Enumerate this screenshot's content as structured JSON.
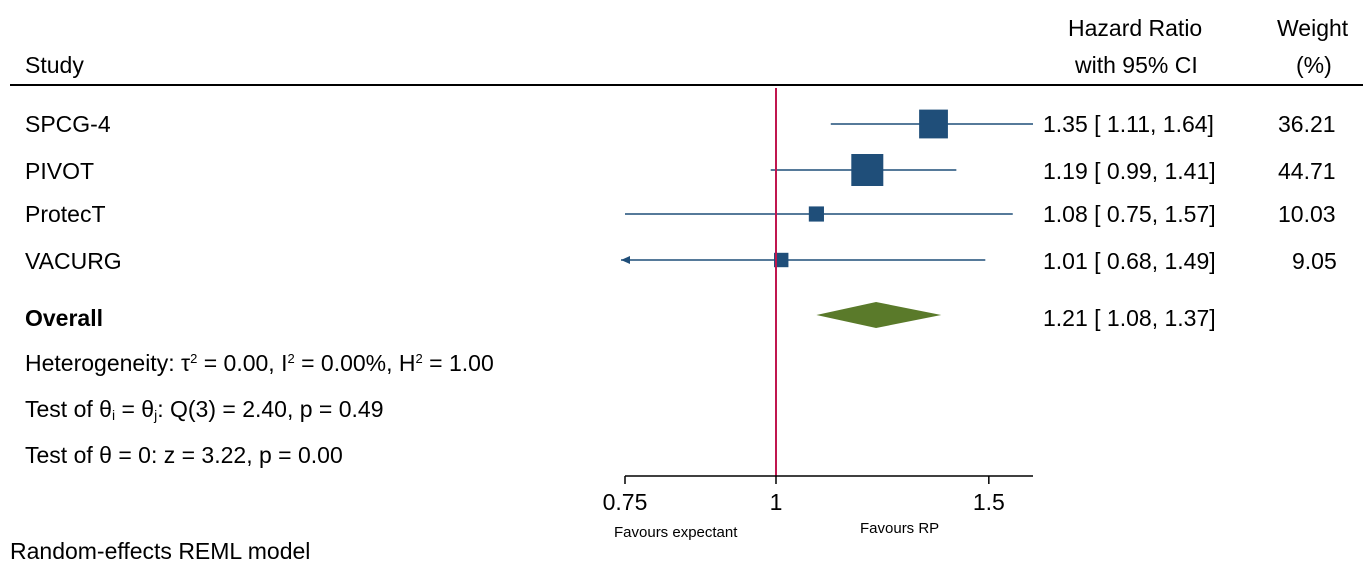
{
  "header": {
    "study_label": "Study",
    "effect_label_line1": "Hazard Ratio",
    "effect_label_line2": "with 95% CI",
    "weight_label_line1": "Weight",
    "weight_label_line2": "(%)"
  },
  "stats": {
    "heterogeneity_prefix": "Heterogeneity: τ",
    "tau2_value": " = 0.00, I",
    "i2_value": " = 0.00%, H",
    "h2_value": " = 1.00",
    "superscript": "2",
    "test_theta_prefix": "Test of θ",
    "sub_i": "i",
    "test_theta_mid": " = θ",
    "sub_j": "j",
    "test_theta_rest": ": Q(3) = 2.40, p = 0.49",
    "test_zero": "Test of θ = 0: z = 3.22, p = 0.00"
  },
  "footer": {
    "model": "Random-effects REML model"
  },
  "colors": {
    "marker": "#1f4e79",
    "overall": "#5a7a2a",
    "null_line": "#c0174f",
    "axis": "#000000"
  },
  "chart_data": {
    "type": "forest",
    "x_scale": "log",
    "xlim": [
      0.75,
      1.6
    ],
    "null_value": 1,
    "ticks": [
      {
        "value": 0.75,
        "label": "0.75"
      },
      {
        "value": 1,
        "label": "1"
      },
      {
        "value": 1.5,
        "label": "1.5"
      }
    ],
    "favours_left": "Favours expectant",
    "favours_right": "Favours RP",
    "studies": [
      {
        "name": "SPCG-4",
        "hr": 1.35,
        "lo": 1.11,
        "hi": 1.64,
        "weight": 36.21,
        "ci_text": "1.35 [ 1.11,  1.64]",
        "weight_text": "36.21"
      },
      {
        "name": "PIVOT",
        "hr": 1.19,
        "lo": 0.99,
        "hi": 1.41,
        "weight": 44.71,
        "ci_text": "1.19 [ 0.99,  1.41]",
        "weight_text": "44.71"
      },
      {
        "name": "ProtecT",
        "hr": 1.08,
        "lo": 0.75,
        "hi": 1.57,
        "weight": 10.03,
        "ci_text": "1.08 [ 0.75,  1.57]",
        "weight_text": "10.03"
      },
      {
        "name": "VACURG",
        "hr": 1.01,
        "lo": 0.68,
        "hi": 1.49,
        "weight": 9.05,
        "ci_text": "1.01 [ 0.68,  1.49]",
        "weight_text": "9.05"
      }
    ],
    "overall": {
      "name": "Overall",
      "hr": 1.21,
      "lo": 1.08,
      "hi": 1.37,
      "ci_text": "1.21 [ 1.08,  1.37]"
    }
  }
}
